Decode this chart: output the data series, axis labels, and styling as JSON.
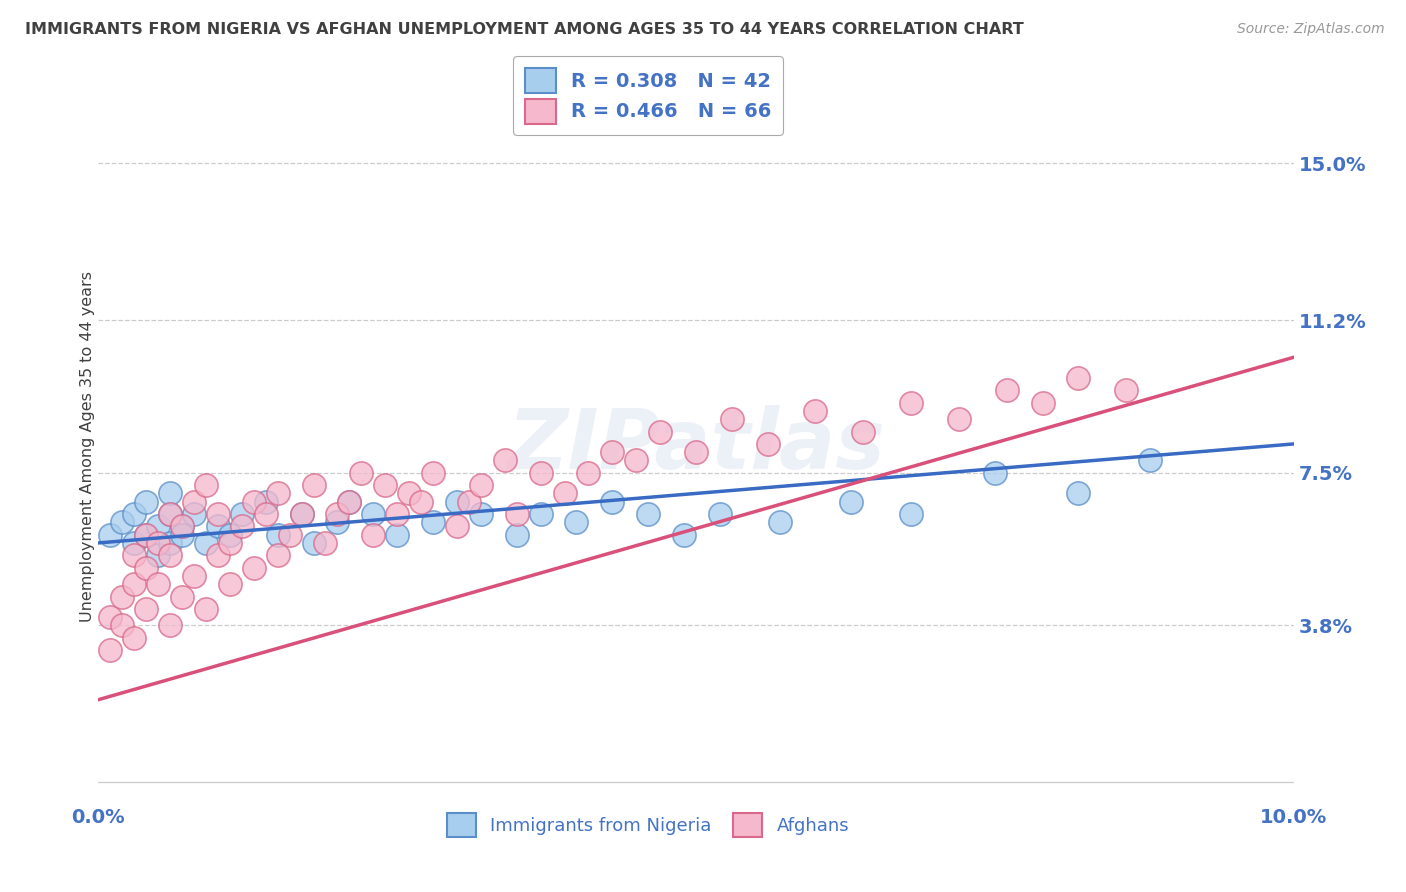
{
  "title": "IMMIGRANTS FROM NIGERIA VS AFGHAN UNEMPLOYMENT AMONG AGES 35 TO 44 YEARS CORRELATION CHART",
  "source": "Source: ZipAtlas.com",
  "ylabel": "Unemployment Among Ages 35 to 44 years",
  "xlim": [
    0.0,
    0.1
  ],
  "ylim": [
    -0.005,
    0.168
  ],
  "yticks": [
    0.038,
    0.075,
    0.112,
    0.15
  ],
  "ytick_labels": [
    "3.8%",
    "7.5%",
    "11.2%",
    "15.0%"
  ],
  "xtick_labels": [
    "0.0%",
    "10.0%"
  ],
  "xtick_vals": [
    0.0,
    0.1
  ],
  "legend_blue": "R = 0.308   N = 42",
  "legend_pink": "R = 0.466   N = 66",
  "legend_label_blue": "Immigrants from Nigeria",
  "legend_label_pink": "Afghans",
  "blue_color": "#A8CEEE",
  "pink_color": "#F5B8CC",
  "blue_edge_color": "#5B8EC8",
  "pink_edge_color": "#D9688A",
  "blue_line_color": "#3A6BC4",
  "pink_line_color": "#D9507A",
  "title_color": "#404040",
  "label_color": "#4472C4",
  "background_color": "#FFFFFF",
  "watermark": "ZIPatlas",
  "nigeria_x": [
    0.001,
    0.002,
    0.003,
    0.003,
    0.004,
    0.004,
    0.005,
    0.005,
    0.006,
    0.006,
    0.006,
    0.007,
    0.007,
    0.008,
    0.009,
    0.01,
    0.011,
    0.012,
    0.014,
    0.015,
    0.017,
    0.018,
    0.02,
    0.021,
    0.023,
    0.025,
    0.028,
    0.03,
    0.032,
    0.035,
    0.037,
    0.04,
    0.043,
    0.046,
    0.049,
    0.052,
    0.057,
    0.063,
    0.068,
    0.075,
    0.082,
    0.088
  ],
  "nigeria_y": [
    0.06,
    0.063,
    0.058,
    0.065,
    0.06,
    0.068,
    0.055,
    0.062,
    0.058,
    0.065,
    0.07,
    0.062,
    0.06,
    0.065,
    0.058,
    0.062,
    0.06,
    0.065,
    0.068,
    0.06,
    0.065,
    0.058,
    0.063,
    0.068,
    0.065,
    0.06,
    0.063,
    0.068,
    0.065,
    0.06,
    0.065,
    0.063,
    0.068,
    0.065,
    0.06,
    0.065,
    0.063,
    0.068,
    0.065,
    0.075,
    0.07,
    0.078
  ],
  "afghan_x": [
    0.001,
    0.001,
    0.002,
    0.002,
    0.003,
    0.003,
    0.003,
    0.004,
    0.004,
    0.004,
    0.005,
    0.005,
    0.006,
    0.006,
    0.006,
    0.007,
    0.007,
    0.008,
    0.008,
    0.009,
    0.009,
    0.01,
    0.01,
    0.011,
    0.011,
    0.012,
    0.013,
    0.013,
    0.014,
    0.015,
    0.015,
    0.016,
    0.017,
    0.018,
    0.019,
    0.02,
    0.021,
    0.022,
    0.023,
    0.024,
    0.025,
    0.026,
    0.027,
    0.028,
    0.03,
    0.031,
    0.032,
    0.034,
    0.035,
    0.037,
    0.039,
    0.041,
    0.043,
    0.045,
    0.047,
    0.05,
    0.053,
    0.056,
    0.06,
    0.064,
    0.068,
    0.072,
    0.076,
    0.079,
    0.082,
    0.086
  ],
  "afghan_y": [
    0.04,
    0.032,
    0.045,
    0.038,
    0.055,
    0.048,
    0.035,
    0.06,
    0.042,
    0.052,
    0.058,
    0.048,
    0.065,
    0.055,
    0.038,
    0.062,
    0.045,
    0.068,
    0.05,
    0.072,
    0.042,
    0.065,
    0.055,
    0.058,
    0.048,
    0.062,
    0.068,
    0.052,
    0.065,
    0.07,
    0.055,
    0.06,
    0.065,
    0.072,
    0.058,
    0.065,
    0.068,
    0.075,
    0.06,
    0.072,
    0.065,
    0.07,
    0.068,
    0.075,
    0.062,
    0.068,
    0.072,
    0.078,
    0.065,
    0.075,
    0.07,
    0.075,
    0.08,
    0.078,
    0.085,
    0.08,
    0.088,
    0.082,
    0.09,
    0.085,
    0.092,
    0.088,
    0.095,
    0.092,
    0.098,
    0.095
  ],
  "nig_line_x0": 0.0,
  "nig_line_x1": 0.1,
  "nig_line_y0": 0.058,
  "nig_line_y1": 0.082,
  "afg_line_x0": 0.0,
  "afg_line_x1": 0.1,
  "afg_line_y0": 0.02,
  "afg_line_y1": 0.103
}
